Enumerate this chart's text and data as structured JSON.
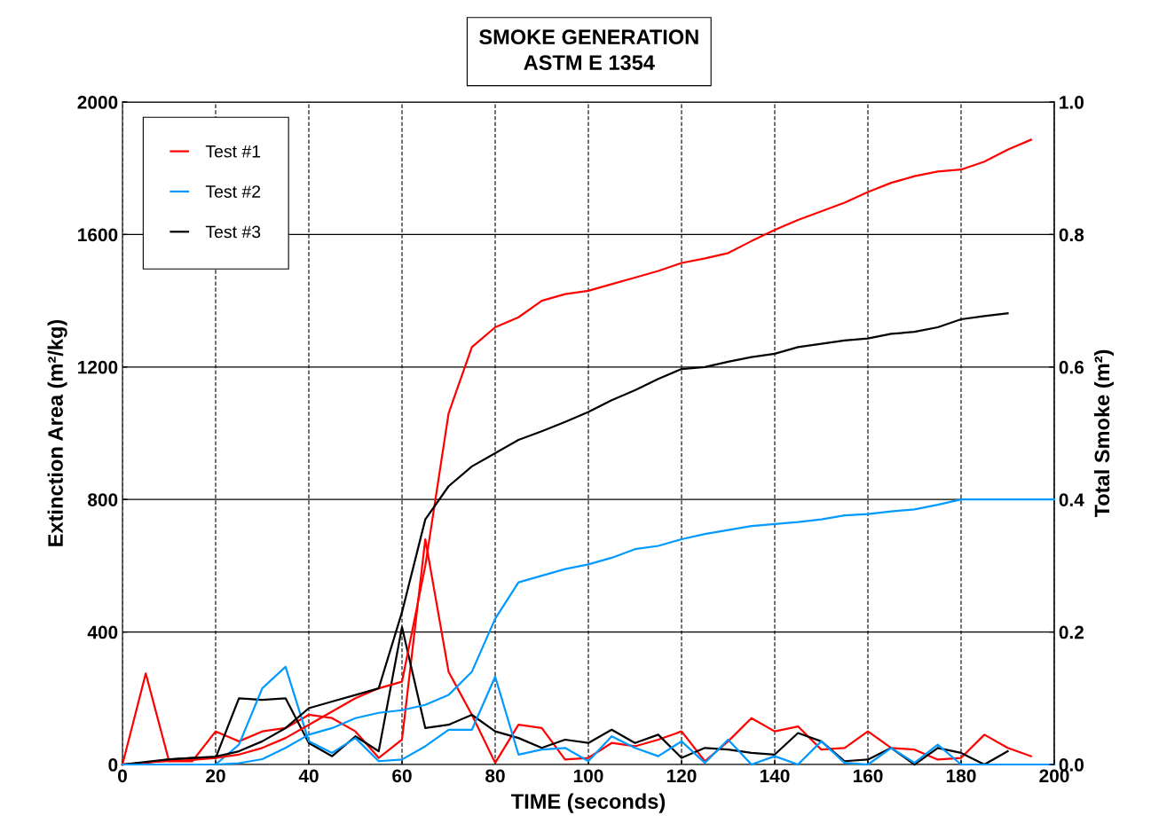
{
  "chart_data": {
    "type": "line",
    "title": "SMOKE GENERATION\nASTM E 1354",
    "xlabel": "TIME (seconds)",
    "ylabel": "Extinction Area (m²/kg)",
    "y2label": "Total Smoke (m²)",
    "x": [
      0,
      5,
      10,
      15,
      20,
      25,
      30,
      35,
      40,
      45,
      50,
      55,
      60,
      65,
      70,
      75,
      80,
      85,
      90,
      95,
      100,
      105,
      110,
      115,
      120,
      125,
      130,
      135,
      140,
      145,
      150,
      155,
      160,
      165,
      170,
      175,
      180,
      185,
      190,
      195,
      200
    ],
    "series": [
      {
        "name": "Test #1",
        "color": "#ff0000",
        "values": [
          0,
          275,
          10,
          10,
          100,
          70,
          100,
          110,
          150,
          140,
          100,
          20,
          75,
          680,
          280,
          150,
          5,
          120,
          110,
          15,
          20,
          65,
          55,
          75,
          100,
          10,
          70,
          140,
          100,
          115,
          45,
          50,
          100,
          50,
          45,
          15,
          20,
          90,
          50,
          25,
          null
        ]
      },
      {
        "name": "Test #2",
        "color": "#0099ff",
        "values": [
          0,
          0,
          0,
          0,
          0,
          60,
          230,
          295,
          70,
          35,
          80,
          10,
          15,
          55,
          105,
          105,
          265,
          30,
          45,
          50,
          10,
          85,
          50,
          25,
          70,
          5,
          75,
          0,
          25,
          0,
          70,
          5,
          0,
          50,
          5,
          60,
          0,
          0,
          0,
          0,
          0
        ]
      },
      {
        "name": "Test #3",
        "color": "#000000",
        "values": [
          0,
          5,
          15,
          20,
          20,
          200,
          195,
          200,
          65,
          25,
          85,
          40,
          415,
          110,
          120,
          150,
          100,
          80,
          50,
          75,
          65,
          105,
          65,
          90,
          20,
          50,
          45,
          35,
          30,
          95,
          70,
          10,
          15,
          50,
          0,
          50,
          35,
          0,
          40,
          null,
          null
        ]
      },
      {
        "color": "#ff0000",
        "axis": "y2",
        "values": [
          0,
          0.003,
          0.005,
          0.007,
          0.01,
          0.015,
          0.025,
          0.04,
          0.06,
          0.08,
          0.1,
          0.115,
          0.125,
          0.3,
          0.53,
          0.63,
          0.66,
          0.675,
          0.7,
          0.71,
          0.715,
          0.725,
          0.735,
          0.745,
          0.757,
          0.764,
          0.772,
          0.79,
          0.807,
          0.822,
          0.835,
          0.848,
          0.864,
          0.878,
          0.888,
          0.895,
          0.898,
          0.91,
          0.928,
          0.943,
          null
        ]
      },
      {
        "color": "#0099ff",
        "axis": "y2",
        "values": [
          0,
          0,
          0,
          0,
          0,
          0.002,
          0.008,
          0.025,
          0.045,
          0.055,
          0.07,
          0.078,
          0.082,
          0.09,
          0.105,
          0.14,
          0.22,
          0.275,
          0.285,
          0.295,
          0.302,
          0.312,
          0.325,
          0.33,
          0.34,
          0.348,
          0.354,
          0.36,
          0.363,
          0.366,
          0.37,
          0.376,
          0.378,
          0.382,
          0.385,
          0.392,
          0.4,
          0.4,
          0.4,
          0.4,
          0.4
        ]
      },
      {
        "color": "#000000",
        "axis": "y2",
        "values": [
          0,
          0.004,
          0.008,
          0.01,
          0.012,
          0.02,
          0.035,
          0.055,
          0.085,
          0.095,
          0.105,
          0.115,
          0.23,
          0.37,
          0.42,
          0.45,
          0.47,
          0.49,
          0.503,
          0.517,
          0.532,
          0.55,
          0.565,
          0.582,
          0.597,
          0.6,
          0.608,
          0.615,
          0.62,
          0.63,
          0.635,
          0.64,
          0.643,
          0.65,
          0.653,
          0.66,
          0.672,
          0.677,
          0.681,
          null,
          null
        ]
      }
    ],
    "xlim": [
      0,
      200
    ],
    "xticks": [
      0,
      20,
      40,
      60,
      80,
      100,
      120,
      140,
      160,
      180,
      200
    ],
    "ylim": [
      0,
      2000
    ],
    "yticks": [
      0,
      400,
      800,
      1200,
      1600,
      2000
    ],
    "y2lim": [
      0,
      1.0
    ],
    "y2ticks": [
      {
        "value": 0,
        "label": "0.0"
      },
      {
        "value": 0.2,
        "label": "0.2"
      },
      {
        "value": 0.4,
        "label": "0.4"
      },
      {
        "value": 0.6,
        "label": "0.6"
      },
      {
        "value": 0.8,
        "label": "0.8"
      },
      {
        "value": 1.0,
        "label": "1.0"
      }
    ],
    "grid": true,
    "legend": "top left",
    "marker": "none",
    "line_style": "solid"
  }
}
